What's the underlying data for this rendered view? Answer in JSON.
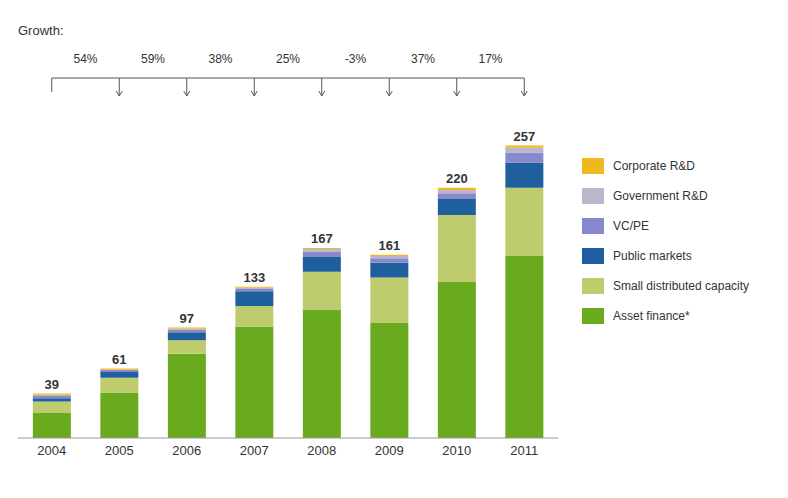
{
  "chart_data": {
    "type": "bar",
    "stacked": true,
    "categories": [
      "2004",
      "2005",
      "2006",
      "2007",
      "2008",
      "2009",
      "2010",
      "2011"
    ],
    "series": [
      {
        "name": "Asset finance*",
        "color": "#6aaa1e",
        "values": [
          22,
          40,
          74,
          98,
          113,
          101,
          137,
          160
        ]
      },
      {
        "name": "Small distributed capacity",
        "color": "#bfcc6e",
        "values": [
          10,
          13,
          12,
          18,
          33,
          40,
          59,
          60
        ]
      },
      {
        "name": "Public markets",
        "color": "#1f5f9e",
        "values": [
          3,
          5,
          7,
          13,
          13,
          13,
          14,
          22
        ]
      },
      {
        "name": "VC/PE",
        "color": "#8888cc",
        "values": [
          2,
          2,
          2,
          2,
          5,
          4,
          5,
          9
        ]
      },
      {
        "name": "Government R&D",
        "color": "#b8b8cc",
        "values": [
          1,
          0,
          1,
          1,
          2,
          2,
          3,
          4
        ]
      },
      {
        "name": "Corporate R&D",
        "color": "#f0b820",
        "values": [
          1,
          1,
          1,
          1,
          1,
          1,
          2,
          2
        ]
      }
    ],
    "totals": [
      39,
      61,
      97,
      133,
      167,
      161,
      220,
      257
    ],
    "growth_header": "Growth:",
    "growth_labels": [
      "54%",
      "59%",
      "38%",
      "25%",
      "-3%",
      "37%",
      "17%"
    ],
    "ylim": [
      0,
      290
    ],
    "tick_labels": "x",
    "grid": false,
    "legend": "right"
  }
}
